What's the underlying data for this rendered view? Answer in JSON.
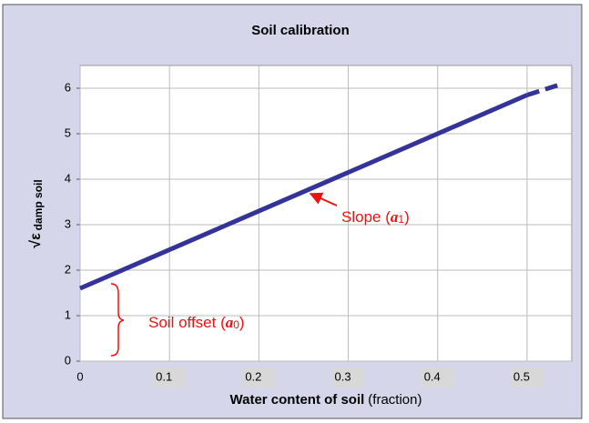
{
  "chart_data": {
    "type": "line",
    "title": "Soil calibration",
    "y_label": {
      "symbol": "√ε",
      "sub": "damp soil"
    },
    "x_label": {
      "bold": "Water content of soil",
      "normal": "(fraction)"
    },
    "xlim": [
      0,
      0.55
    ],
    "xticks": [
      0,
      0.1,
      0.2,
      0.3,
      0.4,
      0.5
    ],
    "ylim": [
      0,
      6.5
    ],
    "yticks": [
      0,
      1,
      2,
      3,
      4,
      5,
      6
    ],
    "grid": true,
    "series": [
      {
        "color": "#333399",
        "dash": false,
        "x": [
          0,
          0.5
        ],
        "values": [
          1.6,
          5.85
        ]
      },
      {
        "color": "#333399",
        "dash": true,
        "x": [
          0.5,
          0.54
        ],
        "values": [
          5.85,
          6.1
        ]
      }
    ],
    "annotations": {
      "slope": {
        "text": "Slope (",
        "symbol": "a",
        "sub": "1",
        "close": ")"
      },
      "offset": {
        "text": "Soil offset (",
        "symbol": "a",
        "sub": "0",
        "close": ")"
      }
    }
  }
}
